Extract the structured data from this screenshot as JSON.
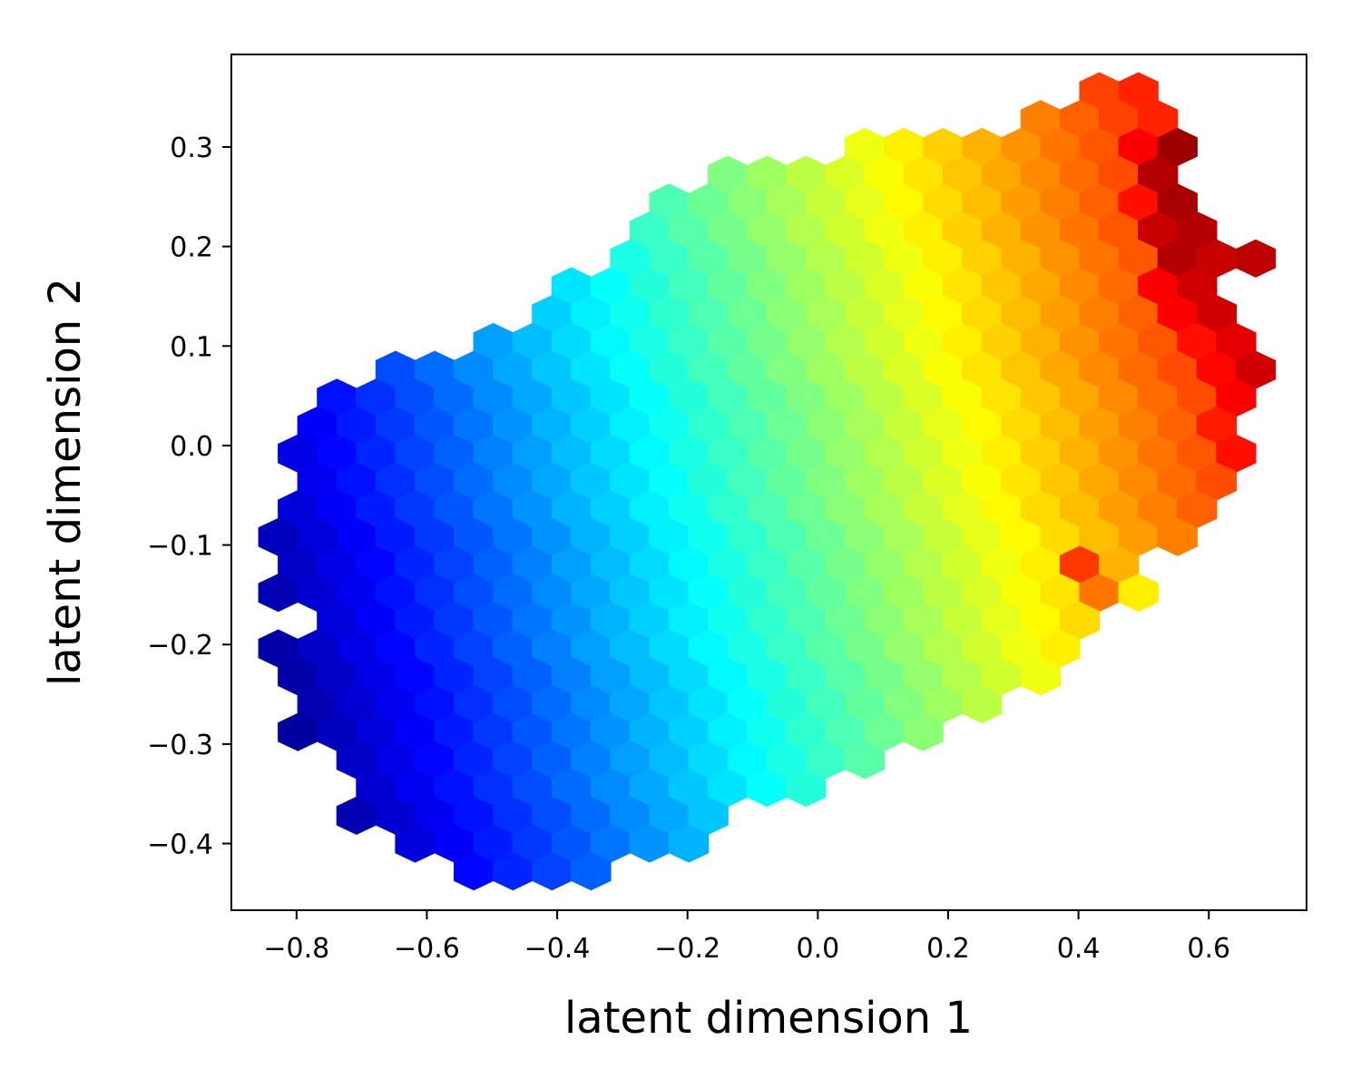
{
  "chart_data": {
    "type": "hexbin",
    "xlabel": "latent dimension 1",
    "ylabel": "latent dimension 2",
    "colormap": "jet",
    "xlim": [
      -0.9,
      0.75
    ],
    "ylim": [
      -0.467,
      0.393
    ],
    "xticks": [
      {
        "value": -0.8,
        "label": "−0.8"
      },
      {
        "value": -0.6,
        "label": "−0.6"
      },
      {
        "value": -0.4,
        "label": "−0.4"
      },
      {
        "value": -0.2,
        "label": "−0.2"
      },
      {
        "value": 0,
        "label": "0.0"
      },
      0.2,
      0.4,
      0.6
    ],
    "yticks": [
      {
        "value": -0.4,
        "label": "−0.4"
      },
      {
        "value": -0.3,
        "label": "−0.3"
      },
      {
        "value": -0.2,
        "label": "−0.2"
      },
      {
        "value": -0.1,
        "label": "−0.1"
      },
      {
        "value": 0,
        "label": "0.0"
      },
      0.1,
      0.2,
      0.3
    ],
    "rows": [
      {
        "y": 0.356,
        "x": [
          0.432,
          0.492
        ],
        "values": [
          0.81,
          0.84
        ]
      },
      {
        "y": 0.328,
        "x": [
          0.342,
          0.402,
          0.462,
          0.522
        ],
        "values": [
          0.75,
          0.78,
          0.81,
          0.84
        ]
      },
      {
        "y": 0.3,
        "x": [
          0.072,
          0.132,
          0.192,
          0.252,
          0.312,
          0.372,
          0.432,
          0.492,
          0.552
        ],
        "values": [
          0.61,
          0.64,
          0.67,
          0.7,
          0.73,
          0.76,
          0.79,
          0.88,
          0.97
        ]
      },
      {
        "y": 0.272,
        "x": [
          -0.138,
          -0.078,
          -0.018,
          0.042,
          0.102,
          0.162,
          0.222,
          0.282,
          0.342,
          0.402,
          0.462,
          0.522
        ],
        "values": [
          0.5,
          0.53,
          0.56,
          0.59,
          0.62,
          0.65,
          0.68,
          0.71,
          0.74,
          0.77,
          0.8,
          0.95
        ]
      },
      {
        "y": 0.244,
        "x": [
          -0.228,
          -0.168,
          -0.108,
          -0.048,
          0.012,
          0.072,
          0.132,
          0.192,
          0.252,
          0.312,
          0.372,
          0.432,
          0.492,
          0.552
        ],
        "values": [
          0.45,
          0.48,
          0.51,
          0.54,
          0.57,
          0.6,
          0.63,
          0.66,
          0.69,
          0.72,
          0.75,
          0.78,
          0.86,
          0.96
        ]
      },
      {
        "y": 0.216,
        "x": [
          -0.258,
          -0.198,
          -0.138,
          -0.078,
          -0.018,
          0.042,
          0.102,
          0.162,
          0.222,
          0.282,
          0.342,
          0.402,
          0.462,
          0.522,
          0.582
        ],
        "values": [
          0.43,
          0.46,
          0.49,
          0.52,
          0.55,
          0.58,
          0.61,
          0.64,
          0.67,
          0.7,
          0.73,
          0.76,
          0.79,
          0.93,
          0.95
        ]
      },
      {
        "y": 0.188,
        "x": [
          -0.288,
          -0.228,
          -0.168,
          -0.108,
          -0.048,
          0.012,
          0.072,
          0.132,
          0.192,
          0.252,
          0.312,
          0.372,
          0.432,
          0.492,
          0.552,
          0.612,
          0.672
        ],
        "values": [
          0.4,
          0.43,
          0.46,
          0.49,
          0.52,
          0.55,
          0.58,
          0.61,
          0.64,
          0.67,
          0.7,
          0.73,
          0.76,
          0.79,
          0.95,
          0.93,
          0.94
        ]
      },
      {
        "y": 0.16,
        "x": [
          -0.378,
          -0.318,
          -0.258,
          -0.198,
          -0.138,
          -0.078,
          -0.018,
          0.042,
          0.102,
          0.162,
          0.222,
          0.282,
          0.342,
          0.402,
          0.462,
          0.522,
          0.582
        ],
        "values": [
          0.35,
          0.38,
          0.41,
          0.44,
          0.47,
          0.5,
          0.53,
          0.56,
          0.59,
          0.62,
          0.65,
          0.68,
          0.71,
          0.74,
          0.77,
          0.88,
          0.92
        ]
      },
      {
        "y": 0.132,
        "x": [
          -0.408,
          -0.348,
          -0.288,
          -0.228,
          -0.168,
          -0.108,
          -0.048,
          0.012,
          0.072,
          0.132,
          0.192,
          0.252,
          0.312,
          0.372,
          0.432,
          0.492,
          0.552,
          0.612
        ],
        "values": [
          0.33,
          0.36,
          0.39,
          0.42,
          0.45,
          0.48,
          0.51,
          0.54,
          0.57,
          0.6,
          0.63,
          0.66,
          0.69,
          0.72,
          0.75,
          0.78,
          0.88,
          0.92
        ]
      },
      {
        "y": 0.104,
        "x": [
          -0.498,
          -0.438,
          -0.378,
          -0.318,
          -0.258,
          -0.198,
          -0.138,
          -0.078,
          -0.018,
          0.042,
          0.102,
          0.162,
          0.222,
          0.282,
          0.342,
          0.402,
          0.462,
          0.522,
          0.582,
          0.642
        ],
        "values": [
          0.28,
          0.31,
          0.34,
          0.37,
          0.4,
          0.43,
          0.46,
          0.49,
          0.52,
          0.55,
          0.58,
          0.61,
          0.64,
          0.67,
          0.7,
          0.73,
          0.76,
          0.79,
          0.86,
          0.9
        ]
      },
      {
        "y": 0.076,
        "x": [
          -0.648,
          -0.588,
          -0.528,
          -0.468,
          -0.408,
          -0.348,
          -0.288,
          -0.228,
          -0.168,
          -0.108,
          -0.048,
          0.012,
          0.072,
          0.132,
          0.192,
          0.252,
          0.312,
          0.372,
          0.432,
          0.492,
          0.552,
          0.612,
          0.672
        ],
        "values": [
          0.2,
          0.23,
          0.26,
          0.29,
          0.32,
          0.35,
          0.38,
          0.41,
          0.44,
          0.47,
          0.5,
          0.53,
          0.56,
          0.59,
          0.62,
          0.65,
          0.68,
          0.71,
          0.74,
          0.77,
          0.8,
          0.87,
          0.92
        ]
      },
      {
        "y": 0.048,
        "x": [
          -0.738,
          -0.678,
          -0.618,
          -0.558,
          -0.498,
          -0.438,
          -0.378,
          -0.318,
          -0.258,
          -0.198,
          -0.138,
          -0.078,
          -0.018,
          0.042,
          0.102,
          0.162,
          0.222,
          0.282,
          0.342,
          0.402,
          0.462,
          0.522,
          0.582,
          0.642
        ],
        "values": [
          0.14,
          0.17,
          0.2,
          0.23,
          0.26,
          0.29,
          0.32,
          0.35,
          0.38,
          0.41,
          0.44,
          0.47,
          0.5,
          0.53,
          0.56,
          0.59,
          0.62,
          0.65,
          0.68,
          0.71,
          0.74,
          0.77,
          0.8,
          0.88
        ]
      },
      {
        "y": 0.02,
        "x": [
          -0.768,
          -0.708,
          -0.648,
          -0.588,
          -0.528,
          -0.468,
          -0.408,
          -0.348,
          -0.288,
          -0.228,
          -0.168,
          -0.108,
          -0.048,
          0.012,
          0.072,
          0.132,
          0.192,
          0.252,
          0.312,
          0.372,
          0.432,
          0.492,
          0.552,
          0.612
        ],
        "values": [
          0.12,
          0.15,
          0.18,
          0.21,
          0.24,
          0.27,
          0.3,
          0.33,
          0.36,
          0.39,
          0.42,
          0.45,
          0.48,
          0.51,
          0.54,
          0.57,
          0.6,
          0.63,
          0.66,
          0.69,
          0.72,
          0.75,
          0.78,
          0.85
        ]
      },
      {
        "y": -0.008,
        "x": [
          -0.798,
          -0.738,
          -0.678,
          -0.618,
          -0.558,
          -0.498,
          -0.438,
          -0.378,
          -0.318,
          -0.258,
          -0.198,
          -0.138,
          -0.078,
          -0.018,
          0.042,
          0.102,
          0.162,
          0.222,
          0.282,
          0.342,
          0.402,
          0.462,
          0.522,
          0.582,
          0.642
        ],
        "values": [
          0.1,
          0.13,
          0.16,
          0.19,
          0.22,
          0.25,
          0.28,
          0.31,
          0.34,
          0.37,
          0.4,
          0.43,
          0.46,
          0.49,
          0.52,
          0.55,
          0.58,
          0.61,
          0.64,
          0.67,
          0.7,
          0.73,
          0.76,
          0.79,
          0.86
        ]
      },
      {
        "y": -0.036,
        "x": [
          -0.768,
          -0.708,
          -0.648,
          -0.588,
          -0.528,
          -0.468,
          -0.408,
          -0.348,
          -0.288,
          -0.228,
          -0.168,
          -0.108,
          -0.048,
          0.012,
          0.072,
          0.132,
          0.192,
          0.252,
          0.312,
          0.372,
          0.432,
          0.492,
          0.552,
          0.612
        ],
        "values": [
          0.11,
          0.14,
          0.17,
          0.2,
          0.23,
          0.26,
          0.29,
          0.32,
          0.35,
          0.38,
          0.41,
          0.44,
          0.47,
          0.5,
          0.53,
          0.56,
          0.59,
          0.62,
          0.65,
          0.68,
          0.71,
          0.74,
          0.77,
          0.8
        ]
      },
      {
        "y": -0.064,
        "x": [
          -0.798,
          -0.738,
          -0.678,
          -0.618,
          -0.558,
          -0.498,
          -0.438,
          -0.378,
          -0.318,
          -0.258,
          -0.198,
          -0.138,
          -0.078,
          -0.018,
          0.042,
          0.102,
          0.162,
          0.222,
          0.282,
          0.342,
          0.402,
          0.462,
          0.522,
          0.582
        ],
        "values": [
          0.09,
          0.12,
          0.15,
          0.18,
          0.21,
          0.24,
          0.27,
          0.3,
          0.33,
          0.36,
          0.39,
          0.42,
          0.45,
          0.48,
          0.51,
          0.54,
          0.57,
          0.6,
          0.63,
          0.66,
          0.69,
          0.72,
          0.75,
          0.78
        ]
      },
      {
        "y": -0.092,
        "x": [
          -0.828,
          -0.768,
          -0.708,
          -0.648,
          -0.588,
          -0.528,
          -0.468,
          -0.408,
          -0.348,
          -0.288,
          -0.228,
          -0.168,
          -0.108,
          -0.048,
          0.012,
          0.072,
          0.132,
          0.192,
          0.252,
          0.312,
          0.372,
          0.432,
          0.492,
          0.552
        ],
        "values": [
          0.06,
          0.09,
          0.12,
          0.15,
          0.18,
          0.21,
          0.24,
          0.27,
          0.3,
          0.33,
          0.36,
          0.39,
          0.42,
          0.45,
          0.48,
          0.51,
          0.54,
          0.57,
          0.6,
          0.63,
          0.66,
          0.69,
          0.72,
          0.75
        ]
      },
      {
        "y": -0.12,
        "x": [
          -0.798,
          -0.738,
          -0.678,
          -0.618,
          -0.558,
          -0.498,
          -0.438,
          -0.378,
          -0.318,
          -0.258,
          -0.198,
          -0.138,
          -0.078,
          -0.018,
          0.042,
          0.102,
          0.162,
          0.222,
          0.282,
          0.342,
          0.402,
          0.462
        ],
        "values": [
          0.07,
          0.1,
          0.13,
          0.16,
          0.19,
          0.22,
          0.25,
          0.28,
          0.31,
          0.34,
          0.37,
          0.4,
          0.43,
          0.46,
          0.49,
          0.52,
          0.55,
          0.58,
          0.61,
          0.64,
          0.82,
          0.7
        ]
      },
      {
        "y": -0.148,
        "x": [
          -0.828,
          -0.768,
          -0.708,
          -0.648,
          -0.588,
          -0.528,
          -0.468,
          -0.408,
          -0.348,
          -0.288,
          -0.228,
          -0.168,
          -0.108,
          -0.048,
          0.012,
          0.072,
          0.132,
          0.192,
          0.252,
          0.312,
          0.372,
          0.432,
          0.492
        ],
        "values": [
          0.05,
          0.08,
          0.11,
          0.14,
          0.17,
          0.2,
          0.23,
          0.26,
          0.29,
          0.32,
          0.35,
          0.38,
          0.41,
          0.44,
          0.47,
          0.5,
          0.53,
          0.56,
          0.59,
          0.62,
          0.65,
          0.76,
          0.64
        ]
      },
      {
        "y": -0.176,
        "x": [
          -0.738,
          -0.678,
          -0.618,
          -0.558,
          -0.498,
          -0.438,
          -0.378,
          -0.318,
          -0.258,
          -0.198,
          -0.138,
          -0.078,
          -0.018,
          0.042,
          0.102,
          0.162,
          0.222,
          0.282,
          0.342,
          0.402
        ],
        "values": [
          0.09,
          0.12,
          0.15,
          0.18,
          0.21,
          0.24,
          0.27,
          0.3,
          0.33,
          0.36,
          0.39,
          0.42,
          0.45,
          0.48,
          0.51,
          0.54,
          0.57,
          0.6,
          0.63,
          0.66
        ]
      },
      {
        "y": -0.204,
        "x": [
          -0.828,
          -0.768,
          -0.708,
          -0.648,
          -0.588,
          -0.528,
          -0.468,
          -0.408,
          -0.348,
          -0.288,
          -0.228,
          -0.168,
          -0.108,
          -0.048,
          0.012,
          0.072,
          0.132,
          0.192,
          0.252,
          0.312,
          0.372
        ],
        "values": [
          0.04,
          0.07,
          0.1,
          0.13,
          0.16,
          0.19,
          0.22,
          0.25,
          0.28,
          0.31,
          0.34,
          0.37,
          0.4,
          0.43,
          0.46,
          0.49,
          0.52,
          0.55,
          0.58,
          0.61,
          0.64
        ]
      },
      {
        "y": -0.232,
        "x": [
          -0.798,
          -0.738,
          -0.678,
          -0.618,
          -0.558,
          -0.498,
          -0.438,
          -0.378,
          -0.318,
          -0.258,
          -0.198,
          -0.138,
          -0.078,
          -0.018,
          0.042,
          0.102,
          0.162,
          0.222,
          0.282,
          0.342
        ],
        "values": [
          0.04,
          0.07,
          0.1,
          0.13,
          0.16,
          0.19,
          0.22,
          0.25,
          0.28,
          0.31,
          0.34,
          0.37,
          0.4,
          0.43,
          0.46,
          0.49,
          0.52,
          0.55,
          0.58,
          0.61
        ]
      },
      {
        "y": -0.26,
        "x": [
          -0.768,
          -0.708,
          -0.648,
          -0.588,
          -0.528,
          -0.468,
          -0.408,
          -0.348,
          -0.288,
          -0.228,
          -0.168,
          -0.108,
          -0.048,
          0.012,
          0.072,
          0.132,
          0.192,
          0.252
        ],
        "values": [
          0.05,
          0.08,
          0.11,
          0.14,
          0.17,
          0.2,
          0.23,
          0.26,
          0.29,
          0.32,
          0.35,
          0.38,
          0.41,
          0.44,
          0.47,
          0.5,
          0.53,
          0.56
        ]
      },
      {
        "y": -0.288,
        "x": [
          -0.798,
          -0.738,
          -0.678,
          -0.618,
          -0.558,
          -0.498,
          -0.438,
          -0.378,
          -0.318,
          -0.258,
          -0.198,
          -0.138,
          -0.078,
          -0.018,
          0.042,
          0.102,
          0.162
        ],
        "values": [
          0.03,
          0.06,
          0.09,
          0.12,
          0.15,
          0.18,
          0.21,
          0.24,
          0.27,
          0.3,
          0.33,
          0.36,
          0.39,
          0.42,
          0.45,
          0.48,
          0.51
        ]
      },
      {
        "y": -0.316,
        "x": [
          -0.708,
          -0.648,
          -0.588,
          -0.528,
          -0.468,
          -0.408,
          -0.348,
          -0.288,
          -0.228,
          -0.168,
          -0.108,
          -0.048,
          0.012,
          0.072
        ],
        "values": [
          0.07,
          0.1,
          0.13,
          0.16,
          0.19,
          0.22,
          0.25,
          0.28,
          0.31,
          0.34,
          0.37,
          0.4,
          0.43,
          0.46
        ]
      },
      {
        "y": -0.344,
        "x": [
          -0.678,
          -0.618,
          -0.558,
          -0.498,
          -0.438,
          -0.378,
          -0.318,
          -0.258,
          -0.198,
          -0.138,
          -0.078,
          -0.018
        ],
        "values": [
          0.08,
          0.11,
          0.14,
          0.17,
          0.2,
          0.23,
          0.26,
          0.29,
          0.32,
          0.35,
          0.38,
          0.41
        ]
      },
      {
        "y": -0.372,
        "x": [
          -0.708,
          -0.648,
          -0.588,
          -0.528,
          -0.468,
          -0.408,
          -0.348,
          -0.288,
          -0.228,
          -0.168
        ],
        "values": [
          0.05,
          0.08,
          0.11,
          0.14,
          0.17,
          0.2,
          0.23,
          0.26,
          0.29,
          0.32
        ]
      },
      {
        "y": -0.4,
        "x": [
          -0.618,
          -0.558,
          -0.498,
          -0.438,
          -0.378,
          -0.318,
          -0.258,
          -0.198
        ],
        "values": [
          0.09,
          0.12,
          0.15,
          0.18,
          0.21,
          0.24,
          0.27,
          0.3
        ]
      },
      {
        "y": -0.428,
        "x": [
          -0.528,
          -0.468,
          -0.408,
          -0.348
        ],
        "values": [
          0.13,
          0.16,
          0.19,
          0.22
        ]
      }
    ]
  }
}
